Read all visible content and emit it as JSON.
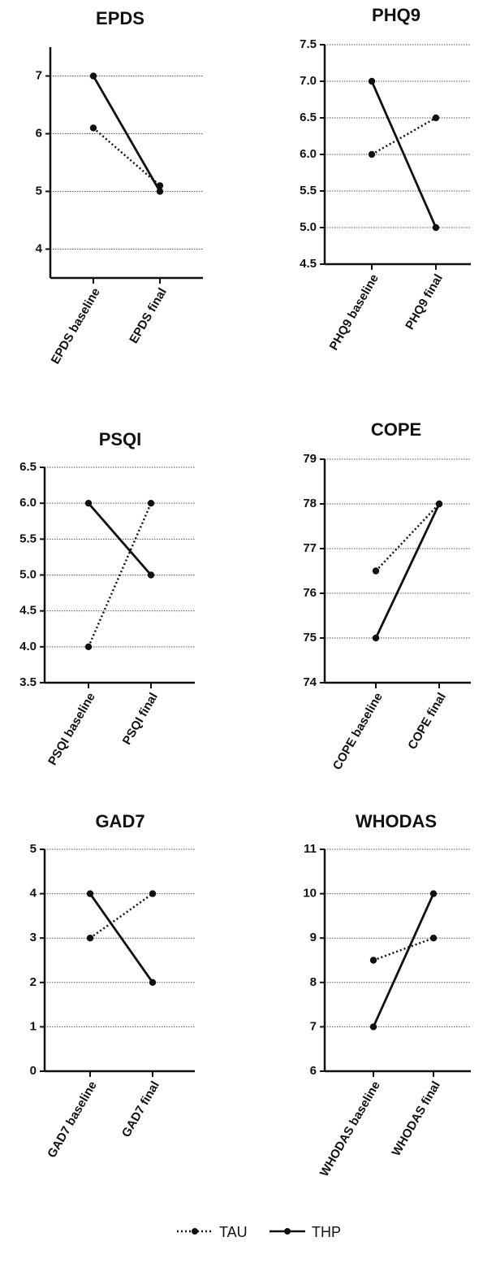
{
  "chart_data": [
    {
      "type": "line",
      "title": "EPDS",
      "categories": [
        "EPDS baseline",
        "EPDS final"
      ],
      "ylim": [
        3.5,
        7.5
      ],
      "yticks": [
        4,
        5,
        6,
        7
      ],
      "ytick_labels": [
        "4",
        "5",
        "6",
        "7"
      ],
      "grid": true,
      "series": [
        {
          "name": "TAU",
          "values": [
            6.1,
            5.1
          ]
        },
        {
          "name": "THP",
          "values": [
            7.0,
            5.0
          ]
        }
      ]
    },
    {
      "type": "line",
      "title": "PHQ9",
      "categories": [
        "PHQ9 baseline",
        "PHQ9 final"
      ],
      "ylim": [
        4.5,
        7.5
      ],
      "yticks": [
        4.5,
        5.0,
        5.5,
        6.0,
        6.5,
        7.0,
        7.5
      ],
      "ytick_labels": [
        "4.5",
        "5.0",
        "5.5",
        "6.0",
        "6.5",
        "7.0",
        "7.5"
      ],
      "grid": true,
      "series": [
        {
          "name": "TAU",
          "values": [
            6.0,
            6.5
          ]
        },
        {
          "name": "THP",
          "values": [
            7.0,
            5.0
          ]
        }
      ]
    },
    {
      "type": "line",
      "title": "PSQI",
      "categories": [
        "PSQI baseline",
        "PSQI final"
      ],
      "ylim": [
        3.5,
        6.5
      ],
      "yticks": [
        3.5,
        4.0,
        4.5,
        5.0,
        5.5,
        6.0,
        6.5
      ],
      "ytick_labels": [
        "3.5",
        "4.0",
        "4.5",
        "5.0",
        "5.5",
        "6.0",
        "6.5"
      ],
      "grid": true,
      "series": [
        {
          "name": "TAU",
          "values": [
            4.0,
            6.0
          ]
        },
        {
          "name": "THP",
          "values": [
            6.0,
            5.0
          ]
        }
      ]
    },
    {
      "type": "line",
      "title": "COPE",
      "categories": [
        "COPE baseline",
        "COPE final"
      ],
      "ylim": [
        74,
        79
      ],
      "yticks": [
        74,
        75,
        76,
        77,
        78,
        79
      ],
      "ytick_labels": [
        "74",
        "75",
        "76",
        "77",
        "78",
        "79"
      ],
      "grid": true,
      "series": [
        {
          "name": "TAU",
          "values": [
            76.5,
            78.0
          ]
        },
        {
          "name": "THP",
          "values": [
            75.0,
            78.0
          ]
        }
      ]
    },
    {
      "type": "line",
      "title": "GAD7",
      "categories": [
        "GAD7 baseline",
        "GAD7 final"
      ],
      "ylim": [
        0,
        5
      ],
      "yticks": [
        0,
        1,
        2,
        3,
        4,
        5
      ],
      "ytick_labels": [
        "0",
        "1",
        "2",
        "3",
        "4",
        "5"
      ],
      "grid": true,
      "series": [
        {
          "name": "TAU",
          "values": [
            3.0,
            4.0
          ]
        },
        {
          "name": "THP",
          "values": [
            4.0,
            2.0
          ]
        }
      ]
    },
    {
      "type": "line",
      "title": "WHODAS",
      "categories": [
        "WHODAS baseline",
        "WHODAS final"
      ],
      "ylim": [
        6,
        11
      ],
      "yticks": [
        6,
        7,
        8,
        9,
        10,
        11
      ],
      "ytick_labels": [
        "6",
        "7",
        "8",
        "9",
        "10",
        "11"
      ],
      "grid": true,
      "series": [
        {
          "name": "TAU",
          "values": [
            8.5,
            9.0
          ]
        },
        {
          "name": "THP",
          "values": [
            7.0,
            10.0
          ]
        }
      ]
    }
  ],
  "legend": {
    "position": "bottom",
    "items": [
      {
        "label": "TAU",
        "style": "dotted"
      },
      {
        "label": "THP",
        "style": "solid"
      }
    ]
  },
  "colors": {
    "line": "#111111",
    "grid": "#555555",
    "axis": "#111111",
    "background": "#ffffff"
  }
}
